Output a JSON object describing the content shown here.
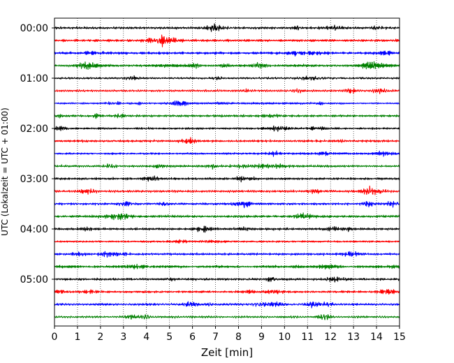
{
  "chart_data": {
    "type": "line",
    "xlabel": "Zeit  [min]",
    "ylabel": "UTC (Lokalzeit = UTC + 01:00)",
    "xlim": [
      0,
      15
    ],
    "x_ticks": [
      "0",
      "1",
      "2",
      "3",
      "4",
      "5",
      "6",
      "7",
      "8",
      "9",
      "10",
      "11",
      "12",
      "13",
      "14",
      "15"
    ],
    "y_ticks": [
      "00:00",
      "01:00",
      "02:00",
      "03:00",
      "04:00",
      "05:00"
    ],
    "grid": "vertical dotted",
    "trace_interval_minutes": 15,
    "trace_count": 24,
    "trace_colors": [
      "#000000",
      "#ff0000",
      "#0000ff",
      "#008000"
    ],
    "trace_start_times": [
      "00:00",
      "00:15",
      "00:30",
      "00:45",
      "01:00",
      "01:15",
      "01:30",
      "01:45",
      "02:00",
      "02:15",
      "02:30",
      "02:45",
      "03:00",
      "03:15",
      "03:30",
      "03:45",
      "04:00",
      "04:15",
      "04:30",
      "04:45",
      "05:00",
      "05:15",
      "05:30",
      "05:45"
    ]
  }
}
